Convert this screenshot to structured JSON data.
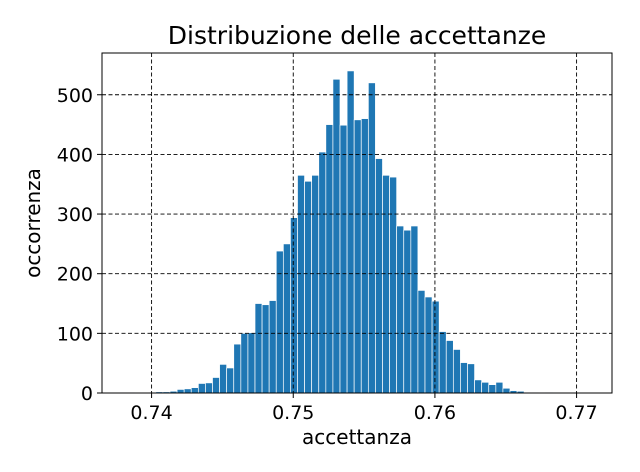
{
  "chart_data": {
    "type": "bar",
    "title": "Distribuzione delle accettanze",
    "xlabel": "accettanza",
    "ylabel": "occorrenza",
    "xlim": [
      0.7365,
      0.7725
    ],
    "ylim": [
      0,
      570
    ],
    "xticks": [
      0.74,
      0.75,
      0.76,
      0.77
    ],
    "xtick_labels": [
      "0.74",
      "0.75",
      "0.76",
      "0.77"
    ],
    "yticks": [
      0,
      100,
      200,
      300,
      400,
      500
    ],
    "ytick_labels": [
      "0",
      "100",
      "200",
      "300",
      "400",
      "500"
    ],
    "grid": true,
    "grid_style": "dashed",
    "bar_color": "#1f77b4",
    "bin_start": 0.7378,
    "bin_width": 0.0005,
    "values": [
      1,
      1,
      0,
      0,
      1,
      2,
      2,
      3,
      6,
      7,
      9,
      16,
      17,
      26,
      48,
      42,
      82,
      100,
      101,
      150,
      148,
      155,
      238,
      250,
      294,
      365,
      355,
      365,
      404,
      450,
      526,
      449,
      540,
      458,
      460,
      520,
      393,
      365,
      362,
      280,
      273,
      280,
      172,
      161,
      154,
      103,
      88,
      73,
      51,
      49,
      22,
      18,
      14,
      18,
      8,
      4,
      3,
      1,
      1,
      0,
      1
    ]
  }
}
